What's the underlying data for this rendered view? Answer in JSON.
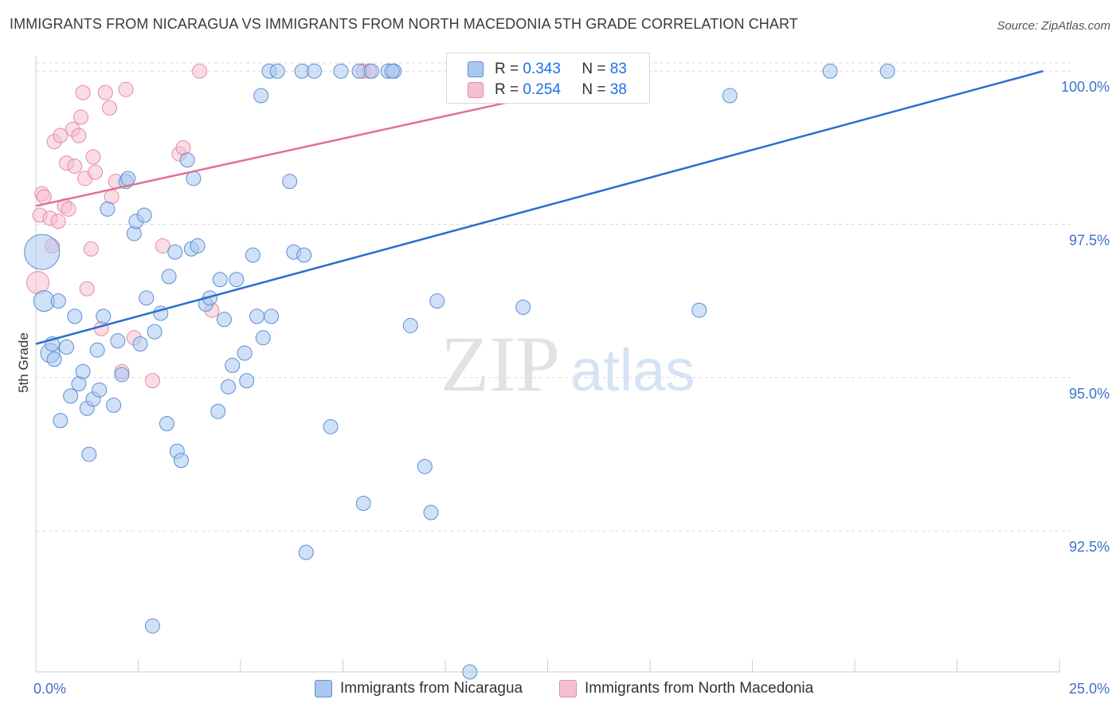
{
  "header": {
    "title": "IMMIGRANTS FROM NICARAGUA VS IMMIGRANTS FROM NORTH MACEDONIA 5TH GRADE CORRELATION CHART",
    "source": "Source: ZipAtlas.com"
  },
  "watermark": {
    "zip": "ZIP",
    "atlas": "atlas"
  },
  "legend": {
    "series1": {
      "r_label": "R =",
      "r_value": "0.343",
      "n_label": "N =",
      "n_value": "83"
    },
    "series2": {
      "r_label": "R =",
      "r_value": "0.254",
      "n_label": "N =",
      "n_value": "38"
    }
  },
  "colors": {
    "nicaragua_fill": "#a9c7f0",
    "nicaragua_stroke": "#5b8fd6",
    "nicaragua_line": "#2b6fcf",
    "macedonia_fill": "#f6bfd0",
    "macedonia_stroke": "#e58aa6",
    "macedonia_line": "#e0709a",
    "axis_text": "#3d72c9",
    "grid": "#d9d9d9"
  },
  "chart_data": {
    "type": "scatter",
    "title": "IMMIGRANTS FROM NICARAGUA VS IMMIGRANTS FROM NORTH MACEDONIA 5TH GRADE CORRELATION CHART",
    "xlabel": "",
    "ylabel": "5th Grade",
    "xlim": [
      0,
      25
    ],
    "ylim": [
      90.2,
      100.25
    ],
    "x_ticks": [
      0,
      2.5,
      5,
      7.5,
      10,
      12.5,
      15,
      17.5,
      20,
      22.5,
      25
    ],
    "x_tick_labels": {
      "min": "0.0%",
      "max": "25.0%"
    },
    "y_ticks": [
      92.5,
      95.0,
      97.5,
      100.0
    ],
    "y_tick_labels": [
      "92.5%",
      "95.0%",
      "97.5%",
      "100.0%"
    ],
    "series": [
      {
        "name": "Immigrants from Nicaragua",
        "r": 0.343,
        "n": 83,
        "trend": {
          "x": [
            0,
            24.6
          ],
          "y": [
            95.55,
            100.0
          ]
        },
        "points": [
          [
            0.15,
            97.05,
            22
          ],
          [
            0.2,
            96.25,
            13
          ],
          [
            0.35,
            95.4,
            12
          ],
          [
            0.4,
            95.55,
            9
          ],
          [
            0.45,
            95.3,
            9
          ],
          [
            0.55,
            96.25,
            9
          ],
          [
            0.6,
            94.3,
            9
          ],
          [
            0.75,
            95.5,
            9
          ],
          [
            0.85,
            94.7,
            9
          ],
          [
            0.95,
            96.0,
            9
          ],
          [
            1.05,
            94.9,
            9
          ],
          [
            1.15,
            95.1,
            9
          ],
          [
            1.25,
            94.5,
            9
          ],
          [
            1.3,
            93.75,
            9
          ],
          [
            1.4,
            94.65,
            9
          ],
          [
            1.5,
            95.45,
            9
          ],
          [
            1.55,
            94.8,
            9
          ],
          [
            1.65,
            96.0,
            9
          ],
          [
            1.75,
            97.75,
            9
          ],
          [
            1.9,
            94.55,
            9
          ],
          [
            2.0,
            95.6,
            9
          ],
          [
            2.1,
            95.05,
            9
          ],
          [
            2.2,
            98.2,
            9
          ],
          [
            2.25,
            98.25,
            9
          ],
          [
            2.4,
            97.35,
            9
          ],
          [
            2.45,
            97.55,
            9
          ],
          [
            2.55,
            95.55,
            9
          ],
          [
            2.65,
            97.65,
            9
          ],
          [
            2.7,
            96.3,
            9
          ],
          [
            2.9,
            95.75,
            9
          ],
          [
            3.05,
            96.05,
            9
          ],
          [
            3.2,
            94.25,
            9
          ],
          [
            3.25,
            96.65,
            9
          ],
          [
            3.4,
            97.05,
            9
          ],
          [
            3.45,
            93.8,
            9
          ],
          [
            3.55,
            93.65,
            9
          ],
          [
            3.7,
            98.55,
            9
          ],
          [
            3.8,
            97.1,
            9
          ],
          [
            3.85,
            98.25,
            9
          ],
          [
            3.95,
            97.15,
            9
          ],
          [
            4.15,
            96.2,
            9
          ],
          [
            4.25,
            96.3,
            9
          ],
          [
            4.45,
            94.45,
            9
          ],
          [
            4.5,
            96.6,
            9
          ],
          [
            4.6,
            95.95,
            9
          ],
          [
            4.7,
            94.85,
            9
          ],
          [
            4.8,
            95.2,
            9
          ],
          [
            4.9,
            96.6,
            9
          ],
          [
            5.1,
            95.4,
            9
          ],
          [
            5.15,
            94.95,
            9
          ],
          [
            5.3,
            97.0,
            9
          ],
          [
            5.4,
            96.0,
            9
          ],
          [
            5.5,
            99.6,
            9
          ],
          [
            5.55,
            95.65,
            9
          ],
          [
            5.7,
            100.0,
            9
          ],
          [
            5.75,
            96.0,
            9
          ],
          [
            5.9,
            100.0,
            9
          ],
          [
            6.2,
            98.2,
            9
          ],
          [
            6.3,
            97.05,
            9
          ],
          [
            6.5,
            100.0,
            9
          ],
          [
            6.55,
            97.0,
            9
          ],
          [
            6.6,
            92.15,
            9
          ],
          [
            6.8,
            100.0,
            9
          ],
          [
            7.2,
            94.2,
            9
          ],
          [
            7.45,
            100.0,
            9
          ],
          [
            7.9,
            100.0,
            9
          ],
          [
            8.0,
            92.95,
            9
          ],
          [
            8.2,
            100.0,
            9
          ],
          [
            8.6,
            100.0,
            9
          ],
          [
            8.75,
            100.0,
            9
          ],
          [
            8.7,
            100.0,
            9
          ],
          [
            9.15,
            95.85,
            9
          ],
          [
            9.5,
            93.55,
            9
          ],
          [
            9.65,
            92.8,
            9
          ],
          [
            9.8,
            96.25,
            9
          ],
          [
            10.25,
            99.8,
            9
          ],
          [
            10.5,
            100.0,
            9
          ],
          [
            10.6,
            90.2,
            9
          ],
          [
            2.85,
            90.95,
            9
          ],
          [
            11.9,
            96.15,
            9
          ],
          [
            16.2,
            96.1,
            9
          ],
          [
            16.95,
            99.6,
            9
          ],
          [
            19.4,
            100.0,
            9
          ],
          [
            20.8,
            100.0,
            9
          ]
        ]
      },
      {
        "name": "Immigrants from North Macedonia",
        "r": 0.254,
        "n": 38,
        "trend": {
          "x": [
            0,
            15.0
          ],
          "y": [
            97.8,
            100.0
          ]
        },
        "points": [
          [
            0.05,
            96.55,
            14
          ],
          [
            0.1,
            97.65,
            9
          ],
          [
            0.15,
            98.0,
            9
          ],
          [
            0.2,
            97.95,
            9
          ],
          [
            0.35,
            97.6,
            9
          ],
          [
            0.4,
            97.15,
            9
          ],
          [
            0.45,
            98.85,
            9
          ],
          [
            0.55,
            97.55,
            9
          ],
          [
            0.6,
            98.95,
            9
          ],
          [
            0.7,
            97.8,
            9
          ],
          [
            0.75,
            98.5,
            9
          ],
          [
            0.8,
            97.75,
            9
          ],
          [
            0.9,
            99.05,
            9
          ],
          [
            0.95,
            98.45,
            9
          ],
          [
            1.05,
            98.95,
            9
          ],
          [
            1.1,
            99.25,
            9
          ],
          [
            1.15,
            99.65,
            9
          ],
          [
            1.2,
            98.25,
            9
          ],
          [
            1.25,
            96.45,
            9
          ],
          [
            1.35,
            97.1,
            9
          ],
          [
            1.4,
            98.6,
            9
          ],
          [
            1.45,
            98.35,
            9
          ],
          [
            1.6,
            95.8,
            9
          ],
          [
            1.7,
            99.65,
            9
          ],
          [
            1.8,
            99.4,
            9
          ],
          [
            1.85,
            97.95,
            9
          ],
          [
            1.95,
            98.2,
            9
          ],
          [
            2.1,
            95.1,
            9
          ],
          [
            2.2,
            99.7,
            9
          ],
          [
            2.4,
            95.65,
            9
          ],
          [
            2.85,
            94.95,
            9
          ],
          [
            3.1,
            97.15,
            9
          ],
          [
            3.5,
            98.65,
            9
          ],
          [
            3.6,
            98.75,
            9
          ],
          [
            4.0,
            100.0,
            9
          ],
          [
            4.3,
            96.1,
            9
          ],
          [
            8.0,
            100.0,
            9
          ],
          [
            8.15,
            100.0,
            9
          ]
        ]
      }
    ]
  }
}
